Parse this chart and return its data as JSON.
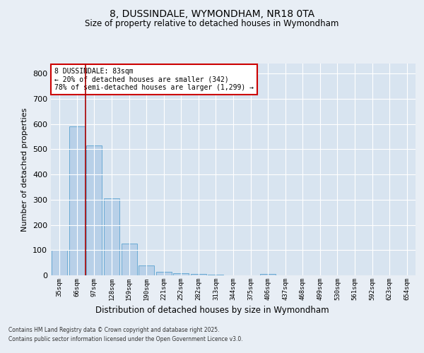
{
  "title": "8, DUSSINDALE, WYMONDHAM, NR18 0TA",
  "subtitle": "Size of property relative to detached houses in Wymondham",
  "xlabel": "Distribution of detached houses by size in Wymondham",
  "ylabel": "Number of detached properties",
  "categories": [
    "35sqm",
    "66sqm",
    "97sqm",
    "128sqm",
    "159sqm",
    "190sqm",
    "221sqm",
    "252sqm",
    "282sqm",
    "313sqm",
    "344sqm",
    "375sqm",
    "406sqm",
    "437sqm",
    "468sqm",
    "499sqm",
    "530sqm",
    "561sqm",
    "592sqm",
    "623sqm",
    "654sqm"
  ],
  "values": [
    100,
    590,
    515,
    305,
    125,
    40,
    15,
    8,
    5,
    3,
    0,
    0,
    5,
    0,
    0,
    0,
    0,
    0,
    0,
    0,
    0
  ],
  "bar_color": "#b8d0e8",
  "bar_edge_color": "#6aaad4",
  "vline_color": "#aa0000",
  "annotation_line1": "8 DUSSINDALE: 83sqm",
  "annotation_line2": "← 20% of detached houses are smaller (342)",
  "annotation_line3": "78% of semi-detached houses are larger (1,299) →",
  "annotation_box_edge_color": "#cc0000",
  "ylim": [
    0,
    840
  ],
  "yticks": [
    0,
    100,
    200,
    300,
    400,
    500,
    600,
    700,
    800
  ],
  "footer1": "Contains HM Land Registry data © Crown copyright and database right 2025.",
  "footer2": "Contains public sector information licensed under the Open Government Licence v3.0.",
  "bg_color": "#e8eef5",
  "plot_bg_color": "#d8e4f0"
}
